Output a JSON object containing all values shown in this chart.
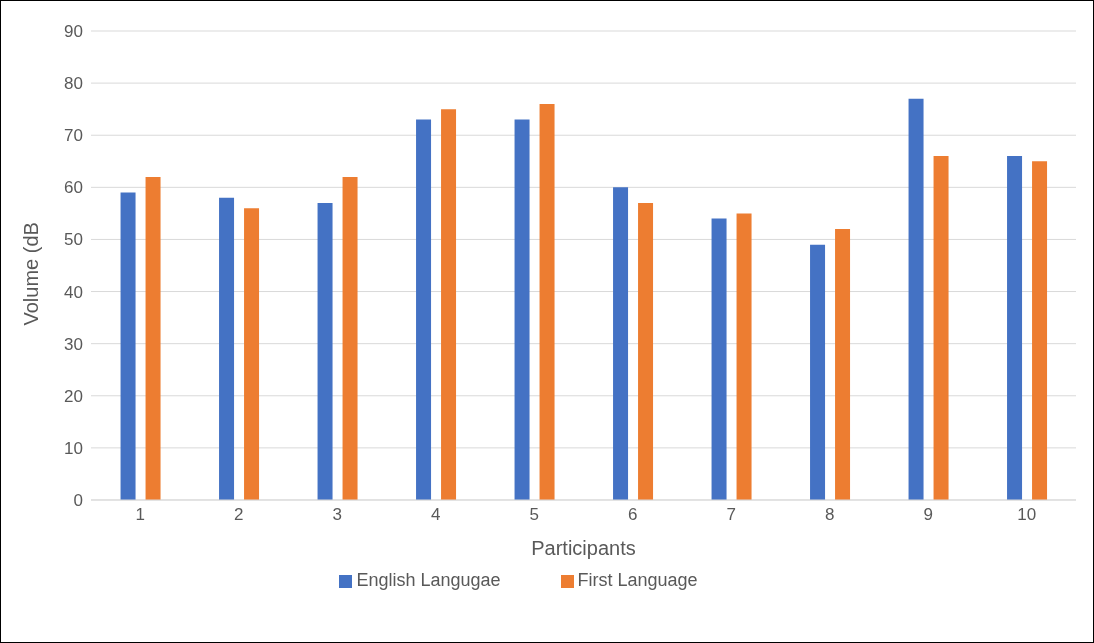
{
  "chart_data": {
    "type": "bar",
    "xlabel": "Participants",
    "ylabel": "Volume (dB",
    "categories": [
      "1",
      "2",
      "3",
      "4",
      "5",
      "6",
      "7",
      "8",
      "9",
      "10"
    ],
    "series": [
      {
        "name": "English Langugae",
        "color": "#4472c4",
        "values": [
          59,
          58,
          57,
          73,
          73,
          60,
          54,
          49,
          77,
          66
        ]
      },
      {
        "name": "First Language",
        "color": "#ed7d31",
        "values": [
          62,
          56,
          62,
          75,
          76,
          57,
          55,
          52,
          66,
          65
        ]
      }
    ],
    "ylim": [
      0,
      90
    ],
    "yticks": [
      0,
      10,
      20,
      30,
      40,
      50,
      60,
      70,
      80,
      90
    ],
    "grid": "y",
    "legend": "bottom"
  }
}
